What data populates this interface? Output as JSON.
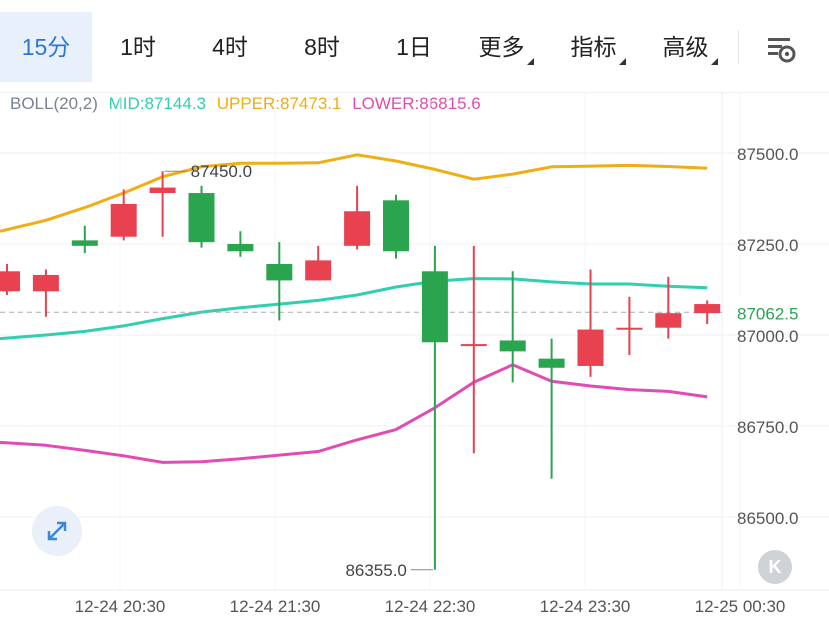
{
  "timeframe_tabs": [
    {
      "label": "15分",
      "active": true,
      "dropdown": false
    },
    {
      "label": "1时",
      "active": false,
      "dropdown": false
    },
    {
      "label": "4时",
      "active": false,
      "dropdown": false
    },
    {
      "label": "8时",
      "active": false,
      "dropdown": false
    },
    {
      "label": "1日",
      "active": false,
      "dropdown": false
    },
    {
      "label": "更多",
      "active": false,
      "dropdown": true
    },
    {
      "label": "指标",
      "active": false,
      "dropdown": true
    },
    {
      "label": "高级",
      "active": false,
      "dropdown": true
    }
  ],
  "indicator": {
    "name": "BOLL(20,2)",
    "mid": "MID:87144.3",
    "upper": "UPPER:87473.1",
    "lower": "LOWER:86815.6"
  },
  "colors": {
    "up": "#e8414f",
    "down": "#2aa44f",
    "mid": "#2fcfb0",
    "upper": "#f0ad14",
    "lower": "#e04bb4",
    "accent": "#2a78d6",
    "current_price": "#2aa44f"
  },
  "icons": {
    "settings": "chart-settings-icon",
    "expand": "expand-arrows-icon",
    "k": "k-line-icon"
  },
  "k_button_label": "K",
  "chart_data": {
    "type": "candlestick",
    "y_ticks": [
      "87500.0",
      "87250.0",
      "87000.0",
      "86750.0",
      "86500.0"
    ],
    "x_ticks": [
      "12-24 20:30",
      "12-24 21:30",
      "12-24 22:30",
      "12-24 23:30",
      "12-25 00:30"
    ],
    "ylim": [
      86300,
      87700
    ],
    "current_price": "87062.5",
    "current_price_value": 87062.5,
    "max_label": "87450.0",
    "max_value": 87450,
    "min_label": "86355.0",
    "min_value": 86355,
    "candles": [
      {
        "open": 87120,
        "close": 87175,
        "high": 87195,
        "low": 87110
      },
      {
        "open": 87120,
        "close": 87165,
        "high": 87180,
        "low": 87050
      },
      {
        "open": 87260,
        "close": 87245,
        "high": 87300,
        "low": 87225
      },
      {
        "open": 87270,
        "close": 87360,
        "high": 87400,
        "low": 87260
      },
      {
        "open": 87390,
        "close": 87405,
        "high": 87450,
        "low": 87270
      },
      {
        "open": 87390,
        "close": 87255,
        "high": 87410,
        "low": 87240
      },
      {
        "open": 87250,
        "close": 87230,
        "high": 87285,
        "low": 87215
      },
      {
        "open": 87195,
        "close": 87150,
        "high": 87255,
        "low": 87040
      },
      {
        "open": 87150,
        "close": 87205,
        "high": 87245,
        "low": 87150
      },
      {
        "open": 87245,
        "close": 87340,
        "high": 87410,
        "low": 87235
      },
      {
        "open": 87370,
        "close": 87230,
        "high": 87385,
        "low": 87210
      },
      {
        "open": 87175,
        "close": 86980,
        "high": 87245,
        "low": 86355
      },
      {
        "open": 86975,
        "close": 86975,
        "high": 87245,
        "low": 86675
      },
      {
        "open": 86985,
        "close": 86955,
        "high": 87175,
        "low": 86870
      },
      {
        "open": 86935,
        "close": 86910,
        "high": 86990,
        "low": 86605
      },
      {
        "open": 86915,
        "close": 87015,
        "high": 87180,
        "low": 86885
      },
      {
        "open": 87015,
        "close": 87020,
        "high": 87105,
        "low": 86945
      },
      {
        "open": 87020,
        "close": 87060,
        "high": 87160,
        "low": 86990
      },
      {
        "open": 87060,
        "close": 87085,
        "high": 87095,
        "low": 87030
      }
    ],
    "boll_upper": [
      87285,
      87315,
      87350,
      87390,
      87435,
      87462,
      87472,
      87472,
      87473,
      87495,
      87478,
      87455,
      87428,
      87442,
      87462,
      87464,
      87466,
      87463,
      87458
    ],
    "boll_mid": [
      86990,
      87000,
      87010,
      87025,
      87045,
      87063,
      87075,
      87085,
      87095,
      87110,
      87132,
      87148,
      87155,
      87154,
      87146,
      87140,
      87140,
      87134,
      87130
    ],
    "boll_lower": [
      86705,
      86697,
      86683,
      86668,
      86650,
      86652,
      86660,
      86670,
      86680,
      86712,
      86740,
      86800,
      86870,
      86918,
      86873,
      86860,
      86850,
      86845,
      86830
    ]
  }
}
